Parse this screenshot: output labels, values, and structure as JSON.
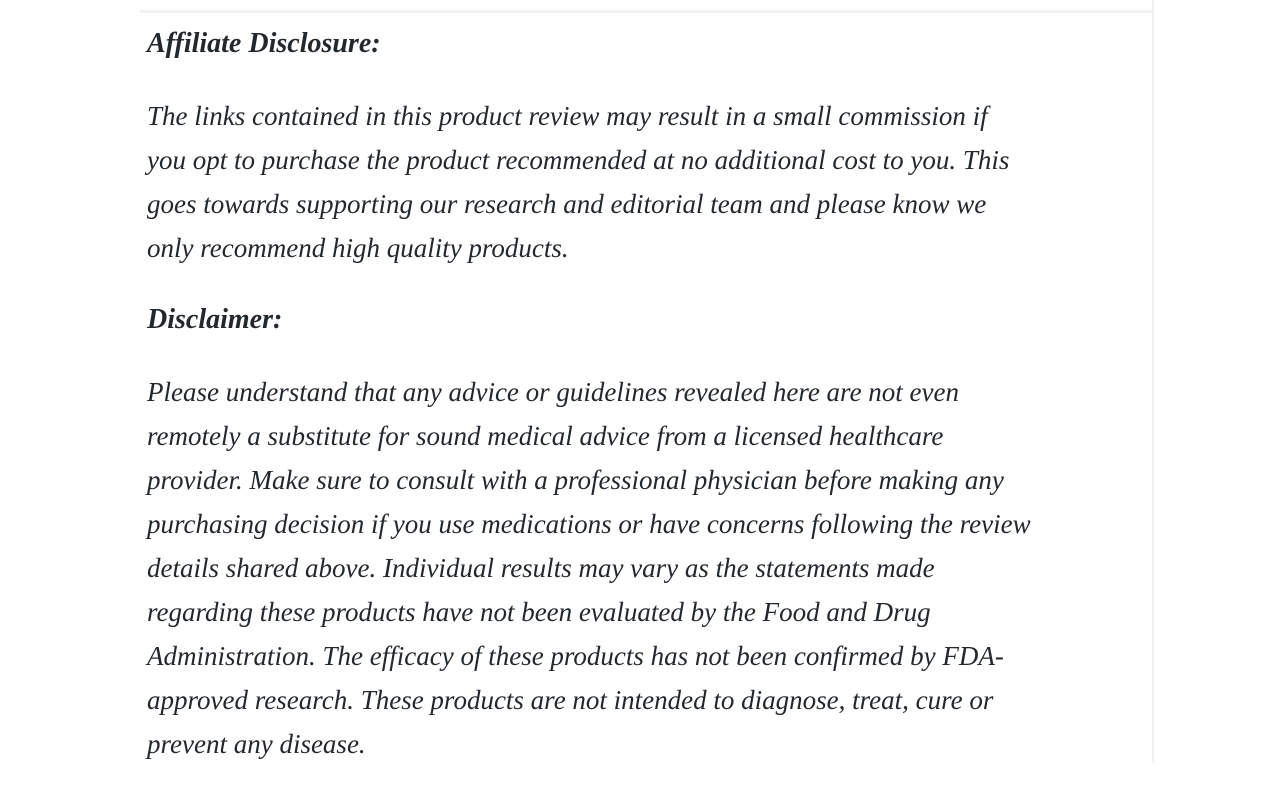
{
  "page": {
    "background_color": "#ffffff",
    "text_color": "#23282d",
    "divider_color": "#f1f1f1"
  },
  "article": {
    "sections": [
      {
        "heading": "Affiliate Disclosure:",
        "body": "The links contained in this product review may result in a small commission if\nyou opt to purchase the product recommended at no additional cost to you. This\ngoes towards supporting our research and editorial team and please know we\nonly recommend high quality products."
      },
      {
        "heading": "Disclaimer:",
        "body": "Please understand that any advice or guidelines revealed here are not even\nremotely a substitute for sound medical advice from a licensed healthcare\nprovider. Make sure to consult with a professional physician before making any\npurchasing decision if you use medications or have concerns following the review\ndetails shared above. Individual results may vary as the statements made\nregarding these products have not been evaluated by the Food and Drug\nAdministration. The efficacy of these products has not been confirmed by FDA-\napproved research. These products are not intended to diagnose, treat, cure or\nprevent any disease."
      }
    ]
  }
}
